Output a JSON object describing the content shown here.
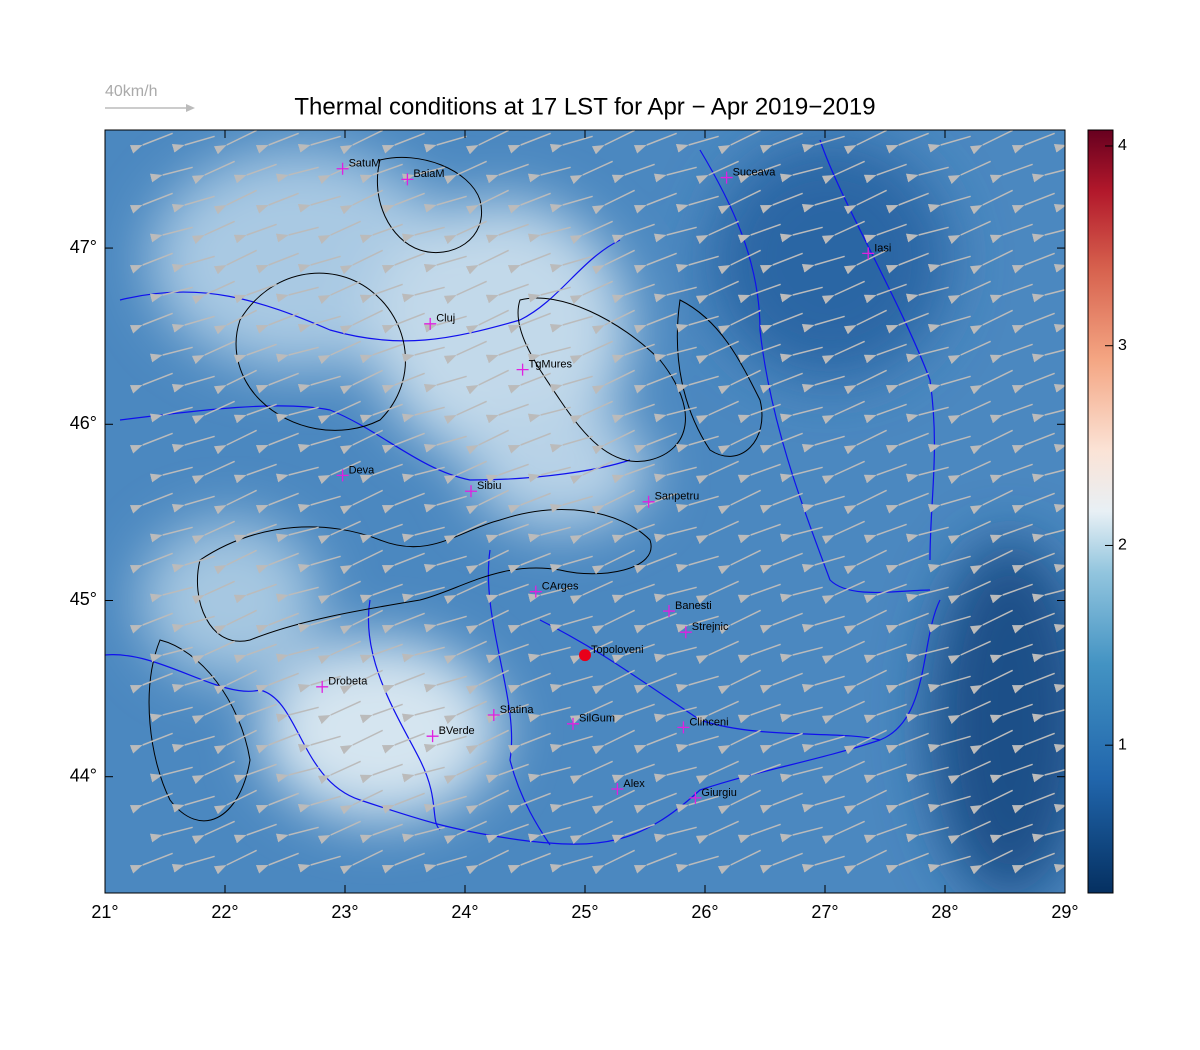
{
  "title": "Thermal conditions at 17 LST for Apr − Apr  2019−2019",
  "wind_legend": "40km/h",
  "map": {
    "xlim": [
      21,
      29
    ],
    "ylim": [
      43.34,
      47.67
    ],
    "xticks": [
      {
        "value": 21,
        "label": "21°"
      },
      {
        "value": 22,
        "label": "22°"
      },
      {
        "value": 23,
        "label": "23°"
      },
      {
        "value": 24,
        "label": "24°"
      },
      {
        "value": 25,
        "label": "25°"
      },
      {
        "value": 26,
        "label": "26°"
      },
      {
        "value": 27,
        "label": "27°"
      },
      {
        "value": 28,
        "label": "28°"
      },
      {
        "value": 29,
        "label": "29°"
      }
    ],
    "yticks": [
      {
        "value": 44,
        "label": "44°"
      },
      {
        "value": 45,
        "label": "45°"
      },
      {
        "value": 46,
        "label": "46°"
      },
      {
        "value": 47,
        "label": "47°"
      }
    ]
  },
  "cities": [
    {
      "name": "SatuM",
      "lon": 22.98,
      "lat": 47.45,
      "marker": "cross"
    },
    {
      "name": "BaiaM",
      "lon": 23.52,
      "lat": 47.39,
      "marker": "cross"
    },
    {
      "name": "Suceava",
      "lon": 26.18,
      "lat": 47.4,
      "marker": "cross"
    },
    {
      "name": "Iasi",
      "lon": 27.36,
      "lat": 46.97,
      "marker": "cross"
    },
    {
      "name": "Cluj",
      "lon": 23.71,
      "lat": 46.57,
      "marker": "cross"
    },
    {
      "name": "TgMures",
      "lon": 24.48,
      "lat": 46.31,
      "marker": "cross"
    },
    {
      "name": "Deva",
      "lon": 22.98,
      "lat": 45.71,
      "marker": "cross"
    },
    {
      "name": "Sibiu",
      "lon": 24.05,
      "lat": 45.62,
      "marker": "cross"
    },
    {
      "name": "Sanpetru",
      "lon": 25.53,
      "lat": 45.56,
      "marker": "cross"
    },
    {
      "name": "CArges",
      "lon": 24.59,
      "lat": 45.05,
      "marker": "cross"
    },
    {
      "name": "Banesti",
      "lon": 25.7,
      "lat": 44.94,
      "marker": "cross"
    },
    {
      "name": "Strejnic",
      "lon": 25.84,
      "lat": 44.82,
      "marker": "cross"
    },
    {
      "name": "Topoloveni",
      "lon": 25.0,
      "lat": 44.69,
      "marker": "dot"
    },
    {
      "name": "Drobeta",
      "lon": 22.81,
      "lat": 44.51,
      "marker": "cross"
    },
    {
      "name": "Slatina",
      "lon": 24.24,
      "lat": 44.35,
      "marker": "cross"
    },
    {
      "name": "SilGum",
      "lon": 24.9,
      "lat": 44.3,
      "marker": "cross"
    },
    {
      "name": "Clinceni",
      "lon": 25.82,
      "lat": 44.28,
      "marker": "cross"
    },
    {
      "name": "BVerde",
      "lon": 23.73,
      "lat": 44.23,
      "marker": "cross"
    },
    {
      "name": "Alex",
      "lon": 25.27,
      "lat": 43.93,
      "marker": "cross"
    },
    {
      "name": "Giurgiu",
      "lon": 25.92,
      "lat": 43.88,
      "marker": "cross"
    }
  ],
  "colorbar": {
    "lim": [
      0.26,
      4.08
    ],
    "ticks": [
      1,
      2,
      3,
      4
    ]
  }
}
